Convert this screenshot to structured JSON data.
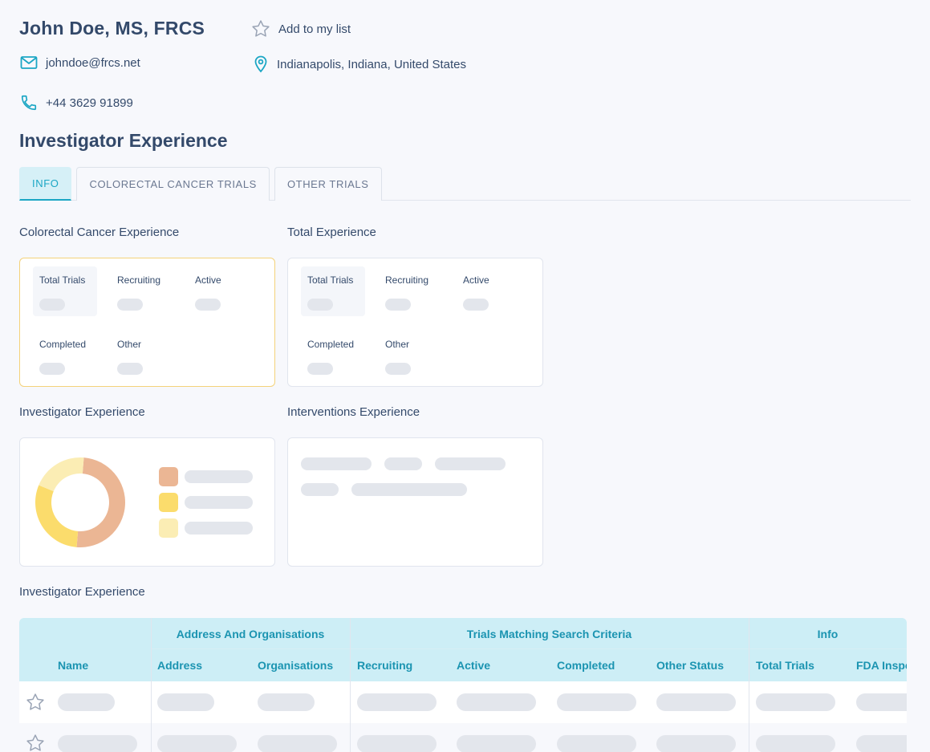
{
  "profile": {
    "name": "John Doe, MS, FRCS",
    "add_to_list": "Add to my list",
    "email": "johndoe@frcs.net",
    "location": "Indianapolis, Indiana, United States",
    "phone": "+44 3629 91899"
  },
  "section_title": "Investigator Experience",
  "tabs": [
    {
      "label": "INFO",
      "active": true
    },
    {
      "label": "COLORECTAL CANCER TRIALS",
      "active": false
    },
    {
      "label": "OTHER TRIALS",
      "active": false
    }
  ],
  "cards": {
    "colorectal": {
      "title": "Colorectal Cancer Experience",
      "stats": [
        "Total Trials",
        "Recruiting",
        "Active",
        "Completed",
        "Other"
      ]
    },
    "total": {
      "title": "Total Experience",
      "stats": [
        "Total Trials",
        "Recruiting",
        "Active",
        "Completed",
        "Other"
      ]
    },
    "investigator": {
      "title": "Investigator Experience"
    },
    "interventions": {
      "title": "Interventions Experience"
    }
  },
  "donut": {
    "fractions": [
      0.5,
      0.3,
      0.2
    ],
    "colors": [
      "#ebb694",
      "#fbdc6c",
      "#fbedb4"
    ]
  },
  "table": {
    "title": "Investigator Experience",
    "groups": [
      "Address And Organisations",
      "Trials Matching Search Criteria",
      "Info"
    ],
    "columns": [
      "Name",
      "Address",
      "Organisations",
      "Recruiting",
      "Active",
      "Completed",
      "Other Status",
      "Total Trials",
      "FDA Inspe"
    ]
  },
  "colors": {
    "accent": "#1ba6c4",
    "text": "#344a6b",
    "highlight_border": "#f4d27a",
    "table_header": "#cdeef6",
    "skeleton": "#e3e6ec"
  }
}
